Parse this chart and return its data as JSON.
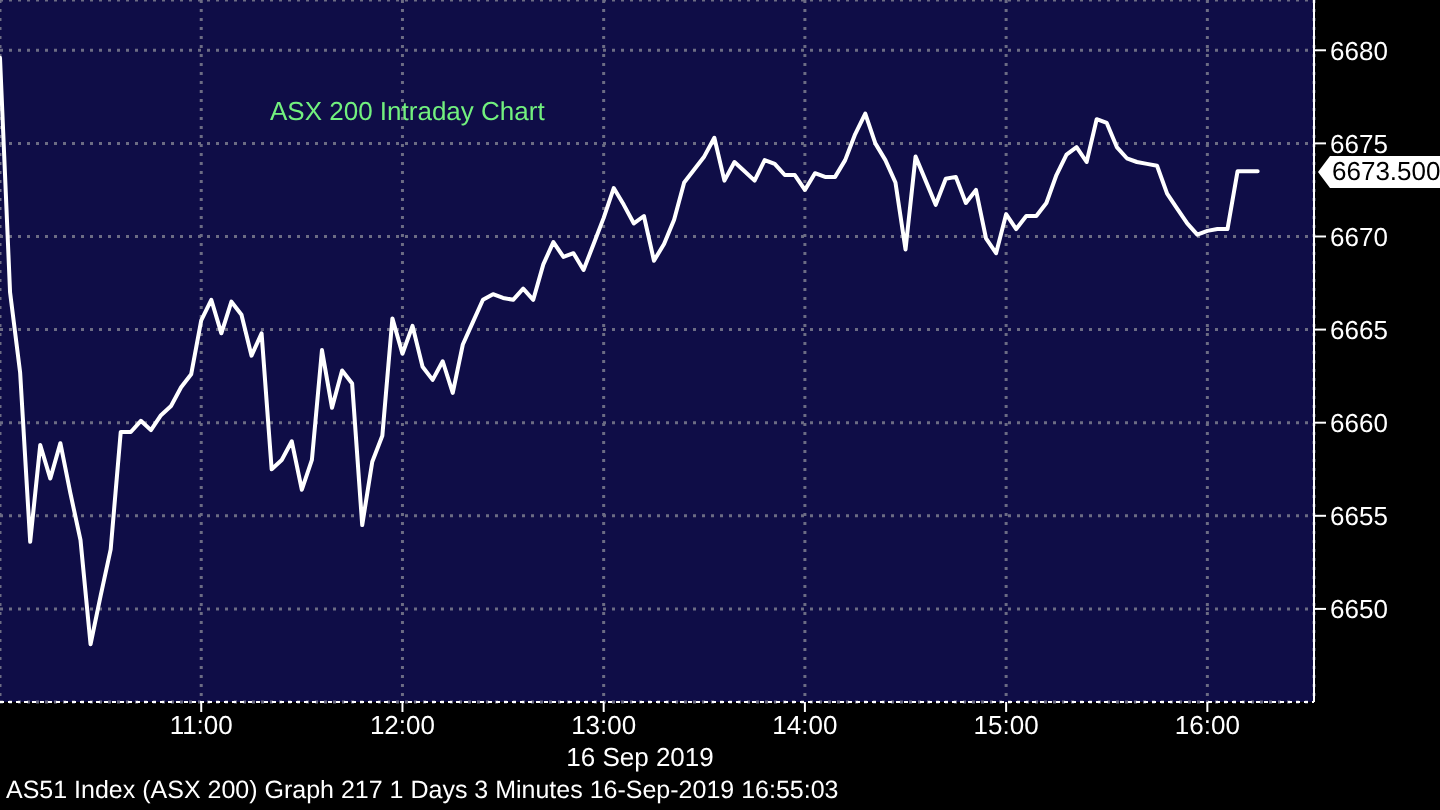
{
  "chart_data": {
    "type": "line",
    "title": "ASX 200 Intraday Chart",
    "xlabel": "16 Sep 2019",
    "x": [
      10,
      10.05,
      10.1,
      10.15,
      10.2,
      10.25,
      10.3,
      10.35,
      10.4,
      10.45,
      10.5,
      10.55,
      10.6,
      10.65,
      10.7,
      10.75,
      10.8,
      10.85,
      10.9,
      10.95,
      11,
      11.05,
      11.1,
      11.15,
      11.2,
      11.25,
      11.3,
      11.35,
      11.4,
      11.45,
      11.5,
      11.55,
      11.6,
      11.65,
      11.7,
      11.75,
      11.8,
      11.85,
      11.9,
      11.95,
      12,
      12.05,
      12.1,
      12.15,
      12.2,
      12.25,
      12.3,
      12.35,
      12.4,
      12.45,
      12.5,
      12.55,
      12.6,
      12.65,
      12.7,
      12.75,
      12.8,
      12.85,
      12.9,
      12.95,
      13,
      13.05,
      13.1,
      13.15,
      13.2,
      13.25,
      13.3,
      13.35,
      13.4,
      13.45,
      13.5,
      13.55,
      13.6,
      13.65,
      13.7,
      13.75,
      13.8,
      13.85,
      13.9,
      13.95,
      14,
      14.05,
      14.1,
      14.15,
      14.2,
      14.25,
      14.3,
      14.35,
      14.4,
      14.45,
      14.5,
      14.55,
      14.6,
      14.65,
      14.7,
      14.75,
      14.8,
      14.85,
      14.9,
      14.95,
      15,
      15.05,
      15.1,
      15.15,
      15.2,
      15.25,
      15.3,
      15.35,
      15.4,
      15.45,
      15.5,
      15.55,
      15.6,
      15.65,
      15.7,
      15.75,
      15.8,
      15.85,
      15.9,
      15.95,
      16,
      16.05,
      16.1,
      16.15,
      16.2,
      16.25
    ],
    "values": [
      6679.6,
      6667.0,
      6662.7,
      6653.6,
      6658.8,
      6657.0,
      6658.9,
      6656.2,
      6653.7,
      6648.1,
      6650.7,
      6653.2,
      6659.5,
      6659.5,
      6660.1,
      6659.6,
      6660.4,
      6660.9,
      6661.9,
      6662.6,
      6665.5,
      6666.6,
      6664.8,
      6666.5,
      6665.8,
      6663.6,
      6664.8,
      6657.5,
      6658.0,
      6659.0,
      6656.4,
      6658.0,
      6663.9,
      6660.8,
      6662.8,
      6662.1,
      6654.5,
      6657.9,
      6659.3,
      6665.6,
      6663.7,
      6665.2,
      6663.0,
      6662.3,
      6663.3,
      6661.6,
      6664.2,
      6665.4,
      6666.6,
      6666.9,
      6666.7,
      6666.6,
      6667.2,
      6666.6,
      6668.5,
      6669.7,
      6668.9,
      6669.1,
      6668.2,
      6669.6,
      6671.0,
      6672.6,
      6671.7,
      6670.7,
      6671.1,
      6668.7,
      6669.6,
      6670.9,
      6672.9,
      6673.6,
      6674.3,
      6675.3,
      6673.0,
      6674.0,
      6673.5,
      6673.0,
      6674.1,
      6673.9,
      6673.3,
      6673.3,
      6672.5,
      6673.4,
      6673.2,
      6673.2,
      6674.1,
      6675.5,
      6676.6,
      6675.0,
      6674.1,
      6672.9,
      6669.3,
      6674.3,
      6673.0,
      6671.7,
      6673.1,
      6673.2,
      6671.8,
      6672.5,
      6669.9,
      6669.1,
      6671.2,
      6670.4,
      6671.1,
      6671.1,
      6671.8,
      6673.3,
      6674.4,
      6674.8,
      6674.0,
      6676.3,
      6676.1,
      6674.8,
      6674.2,
      6674.0,
      6673.9,
      6673.8,
      6672.3,
      6671.5,
      6670.7,
      6670.1,
      6670.3,
      6670.4,
      6670.4,
      6673.5,
      6673.5,
      6673.5
    ],
    "color": "#ffffff",
    "xlim": [
      10,
      16.53
    ],
    "xticks": [
      {
        "value": 11,
        "label": "11:00"
      },
      {
        "value": 12,
        "label": "12:00"
      },
      {
        "value": 13,
        "label": "13:00"
      },
      {
        "value": 14,
        "label": "14:00"
      },
      {
        "value": 15,
        "label": "15:00"
      },
      {
        "value": 16,
        "label": "16:00"
      }
    ],
    "ylim": [
      6645,
      6682.7
    ],
    "yticks": [
      6650,
      6655,
      6660,
      6665,
      6670,
      6675,
      6680
    ],
    "grid": true,
    "annotations": [
      {
        "text": "6673.500",
        "x": 16.25,
        "y": 6673.5
      },
      "AS51 Index (ASX 200) Graph 217 1 Days 3 Minutes 16-Sep-2019 16:55:03"
    ]
  }
}
